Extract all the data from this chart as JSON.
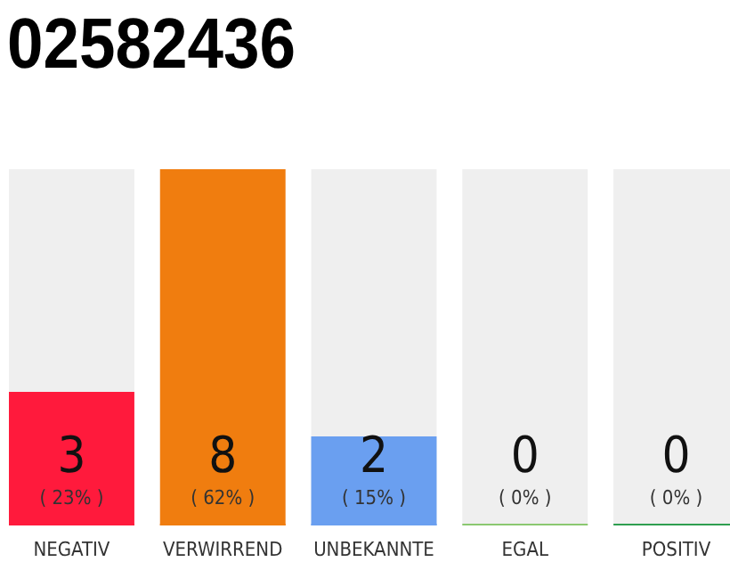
{
  "chart_data": {
    "type": "bar",
    "title": "02582436",
    "categories": [
      "NEGATIV",
      "VERWIRREND",
      "UNBEKANNTE",
      "EGAL",
      "POSITIV"
    ],
    "values": [
      3,
      8,
      2,
      0,
      0
    ],
    "colors": [
      "#ff1a3c",
      "#f07d0f",
      "#6a9ff0",
      "#8bc870",
      "#2e9e4f"
    ],
    "data_labels": true,
    "annotations": [
      "( 23% )",
      "( 62% )",
      "( 15% )",
      "( 0% )",
      "( 0% )"
    ]
  }
}
